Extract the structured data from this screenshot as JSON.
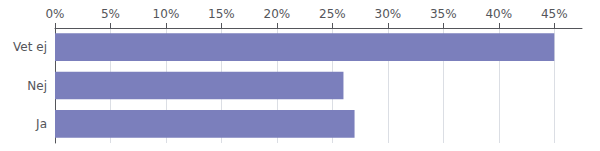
{
  "chart_data": {
    "type": "bar",
    "orientation": "horizontal",
    "categories": [
      "Ja",
      "Nej",
      "Vet ej"
    ],
    "values": [
      27,
      26,
      45
    ],
    "color": "#7b7fbc",
    "xlim": [
      0,
      47.5
    ],
    "xticks": [
      {
        "value": 0,
        "label": "0%"
      },
      {
        "value": 5,
        "label": "5%"
      },
      {
        "value": 10,
        "label": "10%"
      },
      {
        "value": 15,
        "label": "15%"
      },
      {
        "value": 20,
        "label": "20%"
      },
      {
        "value": 25,
        "label": "25%"
      },
      {
        "value": 30,
        "label": "30%"
      },
      {
        "value": 35,
        "label": "35%"
      },
      {
        "value": 40,
        "label": "40%"
      },
      {
        "value": 45,
        "label": "45%"
      }
    ],
    "grid": true
  }
}
